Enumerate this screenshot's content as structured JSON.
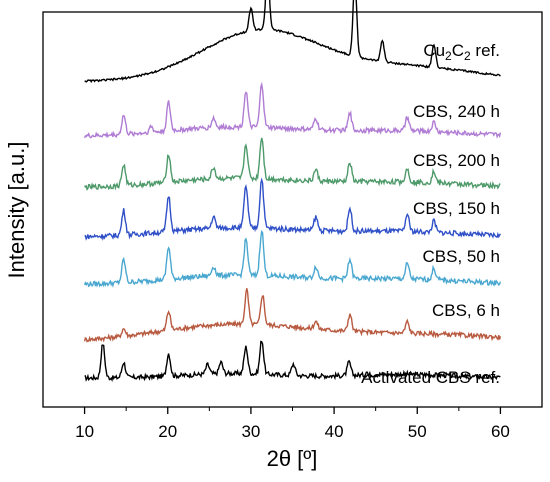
{
  "chart_data": {
    "type": "line",
    "xlabel": "2θ [º]",
    "ylabel": "Intensity [a.u.]",
    "xlim": [
      5,
      65
    ],
    "xticks": [
      10,
      20,
      30,
      40,
      50,
      60
    ],
    "stacked_offset": true,
    "series": [
      {
        "name": "Activated CBS ref.",
        "label_parts": [
          "Activated CBS ref."
        ],
        "color": "#000000",
        "baseline": 0.0,
        "peaks": [
          [
            12.2,
            0.9
          ],
          [
            14.7,
            0.4
          ],
          [
            20.1,
            0.6
          ],
          [
            24.8,
            0.25
          ],
          [
            26.4,
            0.3
          ],
          [
            29.4,
            0.7
          ],
          [
            31.3,
            0.9
          ],
          [
            35.1,
            0.3
          ],
          [
            41.8,
            0.35
          ]
        ],
        "hump": [
          [
            28,
            6,
            0.12
          ],
          [
            48,
            6,
            0.1
          ]
        ],
        "noise": 0.12
      },
      {
        "name": "CBS, 6 h",
        "label_parts": [
          "CBS, 6 h"
        ],
        "color": "#b85a40",
        "baseline": 0.95,
        "peaks": [
          [
            14.7,
            0.2
          ],
          [
            20.1,
            0.5
          ],
          [
            29.5,
            0.9
          ],
          [
            31.4,
            0.8
          ],
          [
            37.8,
            0.2
          ],
          [
            41.9,
            0.45
          ],
          [
            48.8,
            0.3
          ]
        ],
        "hump": [
          [
            28,
            9,
            0.45
          ],
          [
            50,
            10,
            0.2
          ]
        ],
        "noise": 0.12
      },
      {
        "name": "CBS, 50 h",
        "label_parts": [
          "CBS, 50 h"
        ],
        "color": "#4aa8d0",
        "baseline": 2.45,
        "peaks": [
          [
            14.7,
            0.6
          ],
          [
            20.1,
            0.85
          ],
          [
            25.5,
            0.25
          ],
          [
            29.4,
            0.95
          ],
          [
            31.3,
            1.2
          ],
          [
            37.8,
            0.3
          ],
          [
            41.9,
            0.5
          ],
          [
            48.8,
            0.4
          ],
          [
            52.0,
            0.3
          ]
        ],
        "hump": [
          [
            28,
            8,
            0.25
          ],
          [
            48,
            8,
            0.15
          ]
        ],
        "noise": 0.13
      },
      {
        "name": "CBS, 150 h",
        "label_parts": [
          "CBS, 150 h"
        ],
        "color": "#3050c8",
        "baseline": 3.7,
        "peaks": [
          [
            14.7,
            0.65
          ],
          [
            20.1,
            0.95
          ],
          [
            25.5,
            0.3
          ],
          [
            29.4,
            1.1
          ],
          [
            31.3,
            1.3
          ],
          [
            37.8,
            0.35
          ],
          [
            41.9,
            0.6
          ],
          [
            48.8,
            0.45
          ],
          [
            52.0,
            0.3
          ]
        ],
        "hump": [
          [
            28,
            8,
            0.25
          ],
          [
            48,
            8,
            0.15
          ]
        ],
        "noise": 0.13
      },
      {
        "name": "CBS, 200 h",
        "label_parts": [
          "CBS, 200 h"
        ],
        "color": "#4e9a6a",
        "baseline": 5.0,
        "peaks": [
          [
            14.7,
            0.55
          ],
          [
            20.1,
            0.75
          ],
          [
            25.5,
            0.3
          ],
          [
            29.4,
            0.9
          ],
          [
            31.3,
            1.1
          ],
          [
            37.8,
            0.3
          ],
          [
            41.9,
            0.5
          ],
          [
            48.8,
            0.35
          ],
          [
            52.0,
            0.3
          ]
        ],
        "hump": [
          [
            28,
            8,
            0.25
          ],
          [
            48,
            8,
            0.15
          ]
        ],
        "noise": 0.13
      },
      {
        "name": "CBS, 240 h",
        "label_parts": [
          "CBS, 240 h"
        ],
        "color": "#b07cd4",
        "baseline": 6.35,
        "peaks": [
          [
            14.7,
            0.5
          ],
          [
            18.0,
            0.15
          ],
          [
            20.1,
            0.75
          ],
          [
            25.5,
            0.25
          ],
          [
            29.4,
            0.95
          ],
          [
            31.3,
            1.15
          ],
          [
            37.8,
            0.3
          ],
          [
            41.9,
            0.45
          ],
          [
            48.8,
            0.35
          ],
          [
            52.0,
            0.25
          ]
        ],
        "hump": [
          [
            28,
            8,
            0.25
          ],
          [
            48,
            8,
            0.15
          ]
        ],
        "noise": 0.12
      },
      {
        "name": "Cu2C2 ref.",
        "label_parts": [
          "Cu",
          "2",
          "C",
          "2",
          " ref."
        ],
        "color": "#000000",
        "baseline": 7.8,
        "peaks": [
          [
            30.0,
            0.6
          ],
          [
            32.0,
            1.6
          ],
          [
            42.5,
            2.0
          ],
          [
            45.8,
            0.55
          ],
          [
            52.0,
            0.6
          ]
        ],
        "hump": [
          [
            31,
            7,
            1.3
          ],
          [
            48,
            9,
            0.4
          ]
        ],
        "noise": 0.05
      }
    ]
  }
}
